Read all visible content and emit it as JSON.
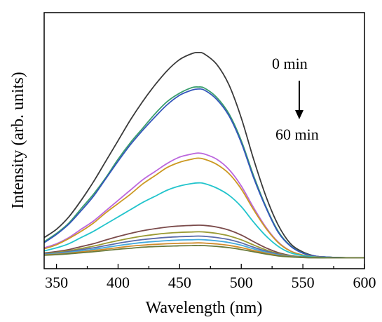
{
  "chart_data": {
    "type": "line",
    "title": "",
    "xlabel": "Wavelength (nm)",
    "ylabel": "Intensity (arb. units)",
    "xlim": [
      340,
      600
    ],
    "ylim": [
      0,
      1
    ],
    "x_ticks": [
      "350",
      "400",
      "450",
      "500",
      "550",
      "600"
    ],
    "y_ticks_labeled": false,
    "grid": false,
    "legend": "none",
    "annotations": {
      "start_label": "0 min",
      "end_label": "60 min",
      "arrow": "down"
    },
    "x": [
      340,
      350,
      360,
      370,
      380,
      390,
      400,
      410,
      420,
      430,
      440,
      450,
      460,
      465,
      470,
      480,
      490,
      500,
      510,
      520,
      530,
      540,
      550,
      560,
      570,
      580,
      590,
      600
    ],
    "series": [
      {
        "color": "#3a3a3a",
        "values": [
          0.1,
          0.14,
          0.2,
          0.28,
          0.37,
          0.47,
          0.57,
          0.67,
          0.76,
          0.84,
          0.91,
          0.963,
          0.992,
          0.997,
          0.99,
          0.94,
          0.84,
          0.68,
          0.48,
          0.3,
          0.16,
          0.07,
          0.03,
          0.01,
          0.005,
          0.003,
          0.002,
          0.002
        ]
      },
      {
        "color": "#3a9e6e",
        "values": [
          0.08,
          0.12,
          0.17,
          0.24,
          0.31,
          0.39,
          0.48,
          0.56,
          0.63,
          0.7,
          0.76,
          0.8,
          0.827,
          0.83,
          0.825,
          0.78,
          0.7,
          0.57,
          0.4,
          0.25,
          0.13,
          0.06,
          0.025,
          0.01,
          0.005,
          0.003,
          0.002,
          0.002
        ]
      },
      {
        "color": "#3355bb",
        "values": [
          0.075,
          0.115,
          0.165,
          0.23,
          0.3,
          0.385,
          0.47,
          0.55,
          0.62,
          0.685,
          0.745,
          0.79,
          0.815,
          0.82,
          0.815,
          0.77,
          0.69,
          0.56,
          0.39,
          0.245,
          0.125,
          0.058,
          0.024,
          0.01,
          0.005,
          0.003,
          0.002,
          0.002
        ]
      },
      {
        "color": "#bb66dd",
        "values": [
          0.05,
          0.07,
          0.1,
          0.14,
          0.18,
          0.23,
          0.28,
          0.33,
          0.38,
          0.42,
          0.46,
          0.49,
          0.505,
          0.51,
          0.505,
          0.48,
          0.43,
          0.35,
          0.245,
          0.15,
          0.078,
          0.035,
          0.015,
          0.006,
          0.003,
          0.002,
          0.002,
          0.002
        ]
      },
      {
        "color": "#cc9922",
        "values": [
          0.045,
          0.065,
          0.095,
          0.13,
          0.17,
          0.22,
          0.265,
          0.31,
          0.36,
          0.4,
          0.44,
          0.465,
          0.48,
          0.485,
          0.48,
          0.455,
          0.41,
          0.335,
          0.235,
          0.145,
          0.075,
          0.034,
          0.015,
          0.006,
          0.003,
          0.002,
          0.002,
          0.002
        ]
      },
      {
        "color": "#22c4cc",
        "values": [
          0.035,
          0.05,
          0.07,
          0.1,
          0.13,
          0.165,
          0.2,
          0.235,
          0.27,
          0.3,
          0.33,
          0.35,
          0.362,
          0.365,
          0.362,
          0.34,
          0.305,
          0.25,
          0.175,
          0.108,
          0.057,
          0.026,
          0.012,
          0.005,
          0.003,
          0.002,
          0.002,
          0.002
        ]
      },
      {
        "color": "#7a4a4a",
        "values": [
          0.025,
          0.032,
          0.042,
          0.056,
          0.07,
          0.088,
          0.105,
          0.12,
          0.133,
          0.143,
          0.151,
          0.156,
          0.159,
          0.16,
          0.159,
          0.151,
          0.136,
          0.112,
          0.08,
          0.05,
          0.027,
          0.013,
          0.006,
          0.003,
          0.002,
          0.002,
          0.002,
          0.002
        ]
      },
      {
        "color": "#9a9a33",
        "values": [
          0.022,
          0.028,
          0.036,
          0.047,
          0.058,
          0.072,
          0.085,
          0.097,
          0.107,
          0.115,
          0.121,
          0.125,
          0.127,
          0.128,
          0.127,
          0.12,
          0.108,
          0.089,
          0.064,
          0.04,
          0.022,
          0.011,
          0.005,
          0.003,
          0.002,
          0.002,
          0.002,
          0.002
        ]
      },
      {
        "color": "#5a6aaa",
        "values": [
          0.02,
          0.025,
          0.032,
          0.041,
          0.05,
          0.061,
          0.072,
          0.082,
          0.09,
          0.096,
          0.101,
          0.104,
          0.106,
          0.107,
          0.106,
          0.1,
          0.09,
          0.074,
          0.053,
          0.034,
          0.019,
          0.009,
          0.004,
          0.002,
          0.002,
          0.002,
          0.002,
          0.002
        ]
      },
      {
        "color": "#44aadd",
        "values": [
          0.018,
          0.022,
          0.028,
          0.035,
          0.043,
          0.052,
          0.061,
          0.069,
          0.076,
          0.081,
          0.085,
          0.088,
          0.089,
          0.09,
          0.089,
          0.084,
          0.076,
          0.063,
          0.045,
          0.029,
          0.016,
          0.008,
          0.004,
          0.002,
          0.002,
          0.002,
          0.002,
          0.002
        ]
      },
      {
        "color": "#d08a2a",
        "values": [
          0.016,
          0.019,
          0.024,
          0.03,
          0.037,
          0.044,
          0.051,
          0.058,
          0.063,
          0.067,
          0.07,
          0.072,
          0.073,
          0.074,
          0.073,
          0.069,
          0.062,
          0.051,
          0.037,
          0.024,
          0.013,
          0.007,
          0.003,
          0.002,
          0.002,
          0.002,
          0.002,
          0.002
        ]
      },
      {
        "color": "#6a7a3a",
        "values": [
          0.014,
          0.017,
          0.021,
          0.026,
          0.031,
          0.037,
          0.043,
          0.048,
          0.053,
          0.056,
          0.058,
          0.06,
          0.061,
          0.061,
          0.061,
          0.057,
          0.051,
          0.042,
          0.031,
          0.02,
          0.011,
          0.006,
          0.003,
          0.002,
          0.002,
          0.002,
          0.002,
          0.002
        ]
      }
    ]
  }
}
